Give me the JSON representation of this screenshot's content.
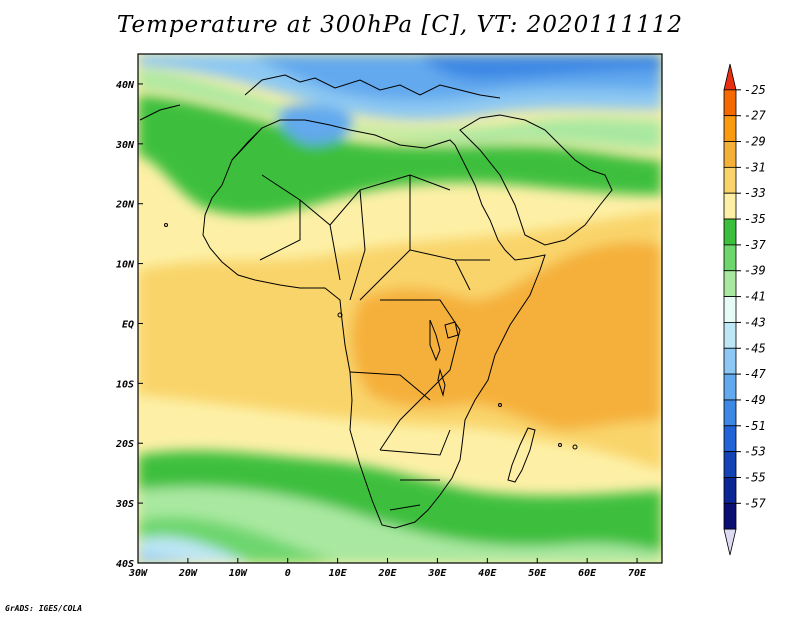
{
  "title": "Temperature at 300hPa [C], VT: 2020111112",
  "footer": "GrADS: IGES/COLA",
  "map": {
    "region": "Africa",
    "variable": "Temperature",
    "level": "300hPa",
    "units": "C",
    "valid_time": "2020111112",
    "lon_range": [
      -30,
      75
    ],
    "lat_range": [
      -40,
      45
    ],
    "x_ticks": [
      {
        "lon": -30,
        "label": "30W"
      },
      {
        "lon": -20,
        "label": "20W"
      },
      {
        "lon": -10,
        "label": "10W"
      },
      {
        "lon": 0,
        "label": "0"
      },
      {
        "lon": 10,
        "label": "10E"
      },
      {
        "lon": 20,
        "label": "20E"
      },
      {
        "lon": 30,
        "label": "30E"
      },
      {
        "lon": 40,
        "label": "40E"
      },
      {
        "lon": 50,
        "label": "50E"
      },
      {
        "lon": 60,
        "label": "60E"
      },
      {
        "lon": 70,
        "label": "70E"
      }
    ],
    "y_ticks": [
      {
        "lat": 40,
        "label": "40N"
      },
      {
        "lat": 30,
        "label": "30N"
      },
      {
        "lat": 20,
        "label": "20N"
      },
      {
        "lat": 10,
        "label": "10N"
      },
      {
        "lat": 0,
        "label": "EQ"
      },
      {
        "lat": -10,
        "label": "10S"
      },
      {
        "lat": -20,
        "label": "20S"
      },
      {
        "lat": -30,
        "label": "30S"
      },
      {
        "lat": -40,
        "label": "40S"
      }
    ]
  },
  "colorbar": {
    "labels": [
      "-25",
      "-27",
      "-29",
      "-31",
      "-33",
      "-35",
      "-37",
      "-39",
      "-41",
      "-43",
      "-45",
      "-47",
      "-49",
      "-51",
      "-53",
      "-55",
      "-57"
    ],
    "colors": [
      "#e83010",
      "#f56a00",
      "#f99a10",
      "#f5b03a",
      "#f9d46a",
      "#fdf0a6",
      "#3cbf3c",
      "#6dd66d",
      "#a9e8a0",
      "#e6fbf6",
      "#bee6f5",
      "#8cc8f3",
      "#62a9ee",
      "#3d88e5",
      "#2163d6",
      "#1443b5",
      "#0c2696",
      "#0a0d72",
      "#dcd9f2"
    ]
  }
}
